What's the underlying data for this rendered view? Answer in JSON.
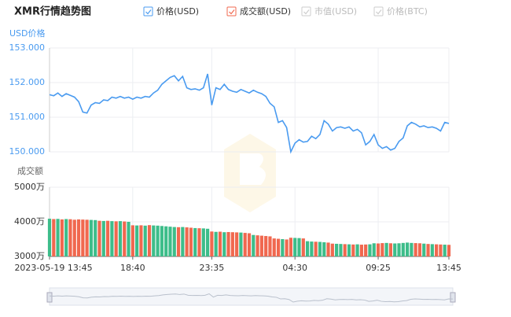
{
  "chart_data": {
    "type": "line",
    "title": "XMR行情趋势图",
    "ylabel": "USD价格",
    "y2label": "成交额",
    "categories": [
      "2023-05-19 13:45",
      null,
      null,
      null,
      null,
      null,
      null,
      null,
      null,
      null,
      null,
      null,
      null,
      null,
      null,
      null,
      null,
      null,
      null,
      null,
      "18:40",
      null,
      null,
      null,
      null,
      null,
      null,
      null,
      null,
      null,
      null,
      null,
      null,
      null,
      null,
      null,
      null,
      null,
      null,
      "23:35",
      null,
      null,
      null,
      null,
      null,
      null,
      null,
      null,
      null,
      null,
      null,
      null,
      null,
      null,
      null,
      null,
      null,
      null,
      null,
      "04:30",
      null,
      null,
      null,
      null,
      null,
      null,
      null,
      null,
      null,
      null,
      null,
      null,
      null,
      null,
      null,
      null,
      null,
      null,
      null,
      "09:25",
      null,
      null,
      null,
      null,
      null,
      null,
      null,
      null,
      null,
      null,
      null,
      null,
      null,
      null,
      null,
      null,
      "13:45"
    ],
    "series": [
      {
        "name": "价格(USD)",
        "type": "line",
        "color": "#4a9bf0",
        "values": [
          151.65,
          151.62,
          151.7,
          151.6,
          151.68,
          151.63,
          151.58,
          151.45,
          151.15,
          151.12,
          151.35,
          151.42,
          151.4,
          151.5,
          151.48,
          151.58,
          151.55,
          151.6,
          151.55,
          151.58,
          151.52,
          151.58,
          151.55,
          151.6,
          151.58,
          151.7,
          151.78,
          151.95,
          152.05,
          152.15,
          152.2,
          152.05,
          152.18,
          151.85,
          151.8,
          151.82,
          151.78,
          151.85,
          152.25,
          151.35,
          151.85,
          151.8,
          151.95,
          151.8,
          151.75,
          151.72,
          151.8,
          151.75,
          151.7,
          151.78,
          151.72,
          151.68,
          151.6,
          151.4,
          151.3,
          150.85,
          150.9,
          150.7,
          150.0,
          150.25,
          150.35,
          150.28,
          150.3,
          150.45,
          150.38,
          150.5,
          150.9,
          150.8,
          150.6,
          150.7,
          150.72,
          150.68,
          150.72,
          150.6,
          150.65,
          150.55,
          150.2,
          150.3,
          150.5,
          150.2,
          150.1,
          150.15,
          150.05,
          150.1,
          150.3,
          150.4,
          150.75,
          150.85,
          150.8,
          150.72,
          150.75,
          150.7,
          150.72,
          150.68,
          150.6,
          150.85,
          150.82
        ]
      },
      {
        "name": "成交额(USD)",
        "type": "bar",
        "axis": "y2",
        "color": "#f0684f",
        "up_color": "#3dbd8a",
        "down_color": "#f0684f",
        "values": [
          4090,
          4080,
          4085,
          4070,
          4080,
          4075,
          4060,
          4070,
          4065,
          4060,
          4055,
          4050,
          4030,
          4025,
          4030,
          4020,
          4015,
          4020,
          4010,
          4000,
          3900,
          3895,
          3900,
          3890,
          3905,
          3895,
          3890,
          3880,
          3870,
          3860,
          3850,
          3845,
          3850,
          3840,
          3830,
          3820,
          3815,
          3810,
          3800,
          3720,
          3710,
          3715,
          3700,
          3705,
          3700,
          3695,
          3690,
          3680,
          3670,
          3620,
          3610,
          3600,
          3590,
          3580,
          3520,
          3510,
          3500,
          3490,
          3540,
          3535,
          3530,
          3520,
          3440,
          3430,
          3425,
          3420,
          3410,
          3400,
          3370,
          3365,
          3360,
          3355,
          3350,
          3345,
          3350,
          3340,
          3345,
          3350,
          3380,
          3375,
          3385,
          3390,
          3380,
          3375,
          3380,
          3390,
          3400,
          3390,
          3385,
          3380,
          3370,
          3360,
          3355,
          3350,
          3345,
          3340,
          3335
        ]
      }
    ],
    "legend_extra": [
      {
        "name": "市值(USD)",
        "enabled": false
      },
      {
        "name": "价格(BTC)",
        "enabled": false
      }
    ],
    "ylim": [
      150,
      153
    ],
    "yticks": [
      {
        "value": 150,
        "label": "150.000"
      },
      {
        "value": 151,
        "label": "151.000"
      },
      {
        "value": 152,
        "label": "152.000"
      },
      {
        "value": 153,
        "label": "153.000"
      }
    ],
    "y2lim": [
      3000,
      5000
    ],
    "y2ticks": [
      {
        "value": 3000,
        "label": "3000万"
      },
      {
        "value": 4000,
        "label": "4000万"
      },
      {
        "value": 5000,
        "label": "5000万"
      }
    ],
    "grid": true
  }
}
